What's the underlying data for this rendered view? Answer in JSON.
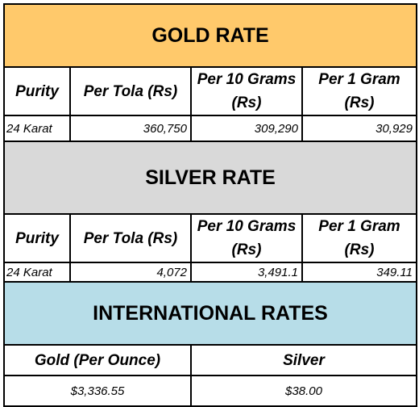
{
  "gold": {
    "title": "GOLD RATE",
    "columns": [
      "Purity",
      "Per Tola (Rs)",
      "Per 10 Grams (Rs)",
      "Per 1 Gram (Rs)"
    ],
    "rows": [
      [
        "24 Karat",
        "360,750",
        "309,290",
        "30,929"
      ]
    ]
  },
  "silver": {
    "title": "SILVER RATE",
    "columns": [
      "Purity",
      "Per Tola (Rs)",
      "Per 10 Grams (Rs)",
      "Per 1 Gram (Rs)"
    ],
    "rows": [
      [
        "24 Karat",
        "4,072",
        "3,491.1",
        "349.11"
      ]
    ]
  },
  "international": {
    "title": "INTERNATIONAL RATES",
    "columns": [
      "Gold (Per Ounce)",
      "Silver"
    ],
    "rows": [
      [
        "$3,336.55",
        "$38.00"
      ]
    ]
  }
}
